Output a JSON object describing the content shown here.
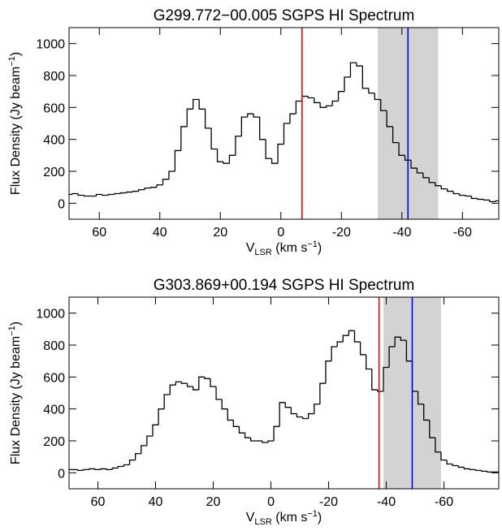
{
  "chart_data": [
    {
      "type": "step",
      "title": "G299.772−00.005 SGPS HI Spectrum",
      "xlabel_parts": [
        "V",
        "LSR",
        " (km s",
        "−1",
        ")"
      ],
      "ylabel_parts": [
        "Flux Density (Jy beam",
        "−1",
        ")"
      ],
      "xlim": [
        70,
        -72
      ],
      "ylim": [
        -100,
        1100
      ],
      "xticks": [
        60,
        40,
        20,
        0,
        -20,
        -40,
        -60
      ],
      "yticks": [
        0,
        200,
        400,
        600,
        800,
        1000
      ],
      "band": [
        -32,
        -52
      ],
      "band_color": "#d3d3d3",
      "markers": [
        {
          "x": -7,
          "color": "#ff0000"
        },
        {
          "x": -42,
          "color": "#0000ff"
        }
      ],
      "series": [
        {
          "color": "#000000",
          "x": [
            70,
            68,
            66,
            64,
            62,
            60,
            58,
            56,
            54,
            52,
            50,
            48,
            46,
            44,
            42,
            40,
            38,
            36,
            34,
            32,
            30,
            28,
            26,
            24,
            22,
            20,
            18,
            16,
            14,
            12,
            10,
            8,
            6,
            4,
            2,
            0,
            -2,
            -4,
            -6,
            -8,
            -10,
            -12,
            -14,
            -16,
            -18,
            -20,
            -22,
            -24,
            -26,
            -28,
            -30,
            -32,
            -34,
            -36,
            -38,
            -40,
            -42,
            -44,
            -46,
            -48,
            -50,
            -52,
            -54,
            -56,
            -58,
            -60,
            -62,
            -64,
            -66,
            -68,
            -70,
            -72
          ],
          "values": [
            55,
            60,
            50,
            45,
            45,
            55,
            50,
            55,
            60,
            65,
            70,
            75,
            85,
            95,
            100,
            115,
            150,
            200,
            330,
            480,
            590,
            650,
            590,
            470,
            340,
            260,
            250,
            300,
            420,
            540,
            560,
            540,
            400,
            280,
            250,
            370,
            500,
            560,
            640,
            670,
            660,
            630,
            600,
            610,
            640,
            700,
            790,
            880,
            860,
            720,
            690,
            650,
            580,
            480,
            380,
            300,
            270,
            220,
            190,
            160,
            130,
            110,
            90,
            75,
            60,
            50,
            45,
            30,
            25,
            20,
            10,
            15
          ]
        }
      ]
    },
    {
      "type": "step",
      "title": "G303.869+00.194 SGPS HI Spectrum",
      "xlabel_parts": [
        "V",
        "LSR",
        " (km s",
        "−1",
        ")"
      ],
      "ylabel_parts": [
        "Flux Density (Jy beam",
        "−1",
        ")"
      ],
      "xlim": [
        70,
        -79
      ],
      "ylim": [
        -100,
        1100
      ],
      "xticks": [
        60,
        40,
        20,
        0,
        -20,
        -40,
        -60
      ],
      "yticks": [
        0,
        200,
        400,
        600,
        800,
        1000
      ],
      "band": [
        -39,
        -59
      ],
      "band_color": "#d3d3d3",
      "markers": [
        {
          "x": -37.5,
          "color": "#ff0000"
        },
        {
          "x": -49,
          "color": "#0000ff"
        }
      ],
      "series": [
        {
          "color": "#000000",
          "x": [
            70,
            68,
            66,
            64,
            62,
            60,
            58,
            56,
            54,
            52,
            50,
            48,
            46,
            44,
            42,
            40,
            38,
            36,
            34,
            32,
            30,
            28,
            26,
            24,
            22,
            20,
            18,
            16,
            14,
            12,
            10,
            8,
            6,
            4,
            2,
            0,
            -2,
            -4,
            -6,
            -8,
            -10,
            -12,
            -14,
            -16,
            -18,
            -20,
            -22,
            -24,
            -26,
            -28,
            -30,
            -32,
            -34,
            -36,
            -38,
            -40,
            -42,
            -44,
            -46,
            -48,
            -50,
            -52,
            -54,
            -56,
            -58,
            -60,
            -62,
            -64,
            -66,
            -68,
            -70,
            -72,
            -74,
            -76,
            -78
          ],
          "values": [
            20,
            20,
            15,
            20,
            25,
            20,
            25,
            20,
            30,
            40,
            50,
            80,
            120,
            170,
            230,
            300,
            400,
            490,
            550,
            570,
            560,
            540,
            520,
            600,
            590,
            540,
            460,
            400,
            330,
            290,
            250,
            220,
            200,
            200,
            190,
            200,
            290,
            440,
            410,
            370,
            350,
            340,
            370,
            430,
            560,
            700,
            790,
            820,
            860,
            890,
            820,
            740,
            650,
            520,
            510,
            660,
            790,
            850,
            830,
            700,
            510,
            430,
            330,
            220,
            130,
            80,
            55,
            45,
            35,
            25,
            20,
            15,
            10,
            5,
            5
          ]
        }
      ]
    }
  ]
}
